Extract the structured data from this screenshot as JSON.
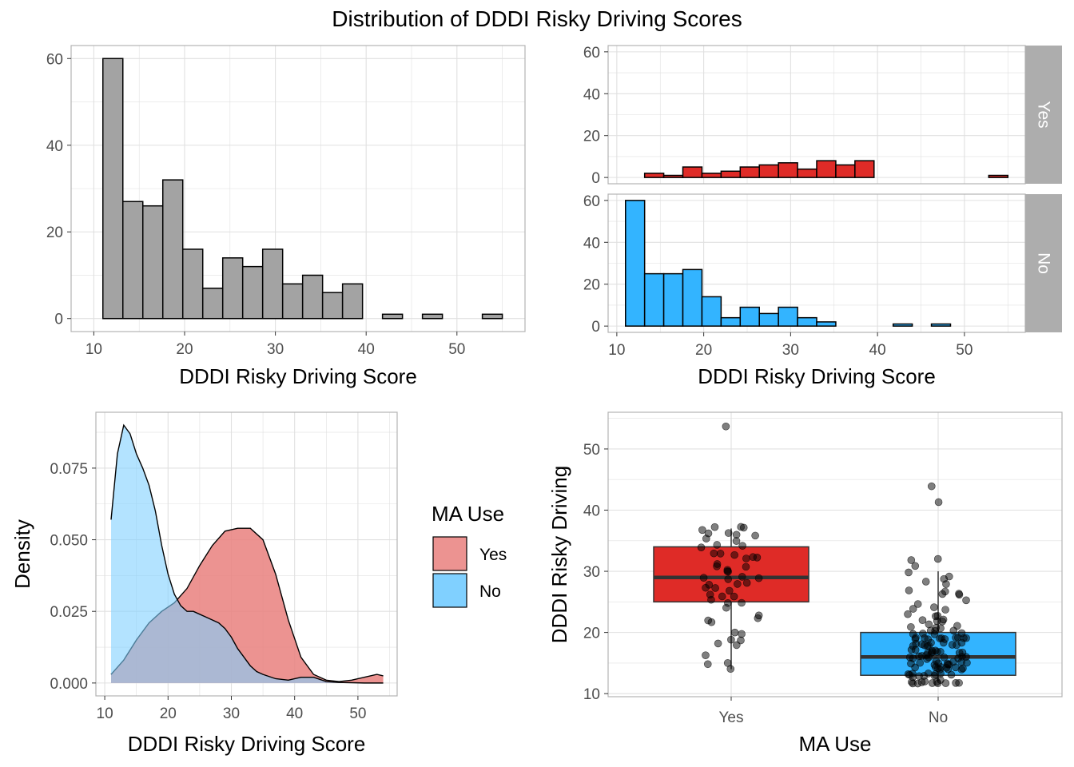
{
  "figure_title": "Distribution of DDDI Risky Driving Scores",
  "colors": {
    "overall_bar": "#a3a3a3",
    "yes": "#df2b27",
    "no": "#33b4ff",
    "density_yes": "#e9807e",
    "density_no": "#80d0ff",
    "grid": "#e0e0e0",
    "panel_border": "#b3b3b3",
    "strip_bg": "#adadad"
  },
  "chart_data": [
    {
      "type": "bar",
      "panel": "overall-histogram",
      "xlabel": "DDDI Risky Driving Score",
      "ylabel": "",
      "xlim": [
        7.5,
        57.5
      ],
      "ylim": [
        -3,
        63
      ],
      "xticks": [
        10,
        20,
        30,
        40,
        50
      ],
      "yticks": [
        0,
        20,
        40,
        60
      ],
      "bin_width": 2.2,
      "bin_starts": [
        11,
        13.2,
        15.4,
        17.6,
        19.8,
        22,
        24.2,
        26.4,
        28.6,
        30.8,
        33,
        35.2,
        37.4,
        39.6,
        41.8,
        44,
        46.2,
        48.4,
        50.6,
        52.8
      ],
      "values": [
        60,
        27,
        26,
        32,
        16,
        7,
        14,
        12,
        16,
        8,
        10,
        6,
        8,
        0,
        1,
        0,
        1,
        0,
        0,
        1
      ]
    },
    {
      "type": "bar",
      "panel": "faceted-histogram",
      "xlabel": "DDDI Risky Driving Score",
      "ylabel": "",
      "xlim": [
        9,
        57
      ],
      "ylim": [
        -3,
        63
      ],
      "xticks": [
        10,
        20,
        30,
        40,
        50
      ],
      "yticks": [
        0,
        20,
        40,
        60
      ],
      "bin_width": 2.2,
      "bin_starts": [
        11,
        13.2,
        15.4,
        17.6,
        19.8,
        22,
        24.2,
        26.4,
        28.6,
        30.8,
        33,
        35.2,
        37.4,
        39.6,
        41.8,
        44,
        46.2,
        48.4,
        50.6,
        52.8
      ],
      "series": [
        {
          "name": "Yes",
          "values": [
            0,
            2,
            1,
            5,
            2,
            3,
            5,
            6,
            7,
            4,
            8,
            6,
            8,
            0,
            0,
            0,
            0,
            0,
            0,
            1
          ]
        },
        {
          "name": "No",
          "values": [
            60,
            25,
            25,
            27,
            14,
            4,
            9,
            6,
            9,
            4,
            2,
            0,
            0,
            0,
            1,
            0,
            1,
            0,
            0,
            0
          ]
        }
      ]
    },
    {
      "type": "area",
      "panel": "density",
      "xlabel": "DDDI Risky Driving Score",
      "ylabel": "Density",
      "xlim": [
        8.6,
        56.2
      ],
      "ylim": [
        -0.0045,
        0.0945
      ],
      "xticks": [
        10,
        20,
        30,
        40,
        50
      ],
      "yticks": [
        0,
        0.025,
        0.05,
        0.075
      ],
      "ytick_labels": [
        "0.000",
        "0.025",
        "0.050",
        "0.075"
      ],
      "legend_title": "MA Use",
      "series": [
        {
          "name": "Yes",
          "x": [
            11,
            13,
            15,
            17,
            19,
            21,
            23,
            25,
            27,
            29,
            31,
            33,
            35,
            37,
            39,
            41,
            43,
            45,
            47,
            49,
            51,
            53,
            54
          ],
          "y": [
            0.003,
            0.008,
            0.015,
            0.021,
            0.025,
            0.028,
            0.033,
            0.041,
            0.048,
            0.053,
            0.054,
            0.054,
            0.05,
            0.038,
            0.022,
            0.009,
            0.003,
            0.001,
            0.0005,
            0.001,
            0.002,
            0.003,
            0.0025
          ]
        },
        {
          "name": "No",
          "x": [
            11,
            12,
            13,
            14,
            15,
            16,
            17,
            18,
            19,
            20,
            21,
            22,
            23,
            24,
            25,
            26,
            27,
            28,
            29,
            30,
            31,
            32,
            33,
            34,
            35,
            37,
            39,
            41,
            43,
            45,
            47,
            49,
            51,
            53,
            54
          ],
          "y": [
            0.057,
            0.08,
            0.09,
            0.087,
            0.08,
            0.075,
            0.069,
            0.06,
            0.048,
            0.038,
            0.031,
            0.027,
            0.025,
            0.025,
            0.024,
            0.023,
            0.022,
            0.021,
            0.019,
            0.016,
            0.012,
            0.009,
            0.006,
            0.004,
            0.003,
            0.0015,
            0.001,
            0.002,
            0.002,
            0.0005,
            0.0002,
            0.0001,
            0,
            0,
            0
          ]
        }
      ]
    },
    {
      "type": "scatter",
      "panel": "boxplot",
      "xlabel": "MA Use",
      "ylabel": "DDDI Risky Driving",
      "categories": [
        "Yes",
        "No"
      ],
      "ylim": [
        9.5,
        56
      ],
      "yticks": [
        10,
        20,
        30,
        40,
        50
      ],
      "boxes": [
        {
          "name": "Yes",
          "q1": 25,
          "median": 29,
          "q3": 34,
          "whisker_low": 14,
          "whisker_high": 37,
          "outliers": [
            54
          ]
        },
        {
          "name": "No",
          "q1": 13,
          "median": 16,
          "q3": 20,
          "whisker_low": 12,
          "whisker_high": 30,
          "outliers": [
            44,
            41
          ]
        }
      ],
      "points": [
        {
          "name": "Yes",
          "values": [
            14,
            15,
            15,
            16,
            18,
            18,
            19,
            19,
            20,
            20,
            22,
            22,
            22,
            23,
            24,
            25,
            25,
            25,
            26,
            26,
            26,
            27,
            27,
            27,
            28,
            28,
            28,
            29,
            29,
            29,
            29,
            30,
            30,
            30,
            31,
            31,
            31,
            32,
            32,
            32,
            33,
            33,
            33,
            34,
            34,
            34,
            35,
            35,
            36,
            36,
            36,
            36,
            37,
            37,
            37,
            37,
            54
          ]
        },
        {
          "name": "No",
          "values": [
            12,
            12,
            12,
            12,
            12,
            12,
            12,
            12,
            12,
            12,
            12,
            12,
            13,
            13,
            13,
            13,
            13,
            13,
            13,
            13,
            13,
            13,
            13,
            14,
            14,
            14,
            14,
            14,
            14,
            14,
            14,
            14,
            14,
            15,
            15,
            15,
            15,
            15,
            15,
            15,
            15,
            15,
            15,
            15,
            16,
            16,
            16,
            16,
            16,
            16,
            16,
            16,
            16,
            16,
            16,
            17,
            17,
            17,
            17,
            17,
            17,
            17,
            17,
            17,
            17,
            17,
            18,
            18,
            18,
            18,
            18,
            18,
            18,
            18,
            18,
            18,
            18,
            19,
            19,
            19,
            19,
            19,
            19,
            19,
            19,
            19,
            19,
            19,
            20,
            20,
            20,
            20,
            20,
            20,
            20,
            21,
            21,
            21,
            21,
            21,
            22,
            22,
            22,
            22,
            23,
            23,
            23,
            24,
            24,
            24,
            25,
            25,
            26,
            26,
            26,
            27,
            27,
            28,
            28,
            29,
            29,
            30,
            31,
            32,
            32,
            41,
            44
          ]
        }
      ]
    }
  ]
}
